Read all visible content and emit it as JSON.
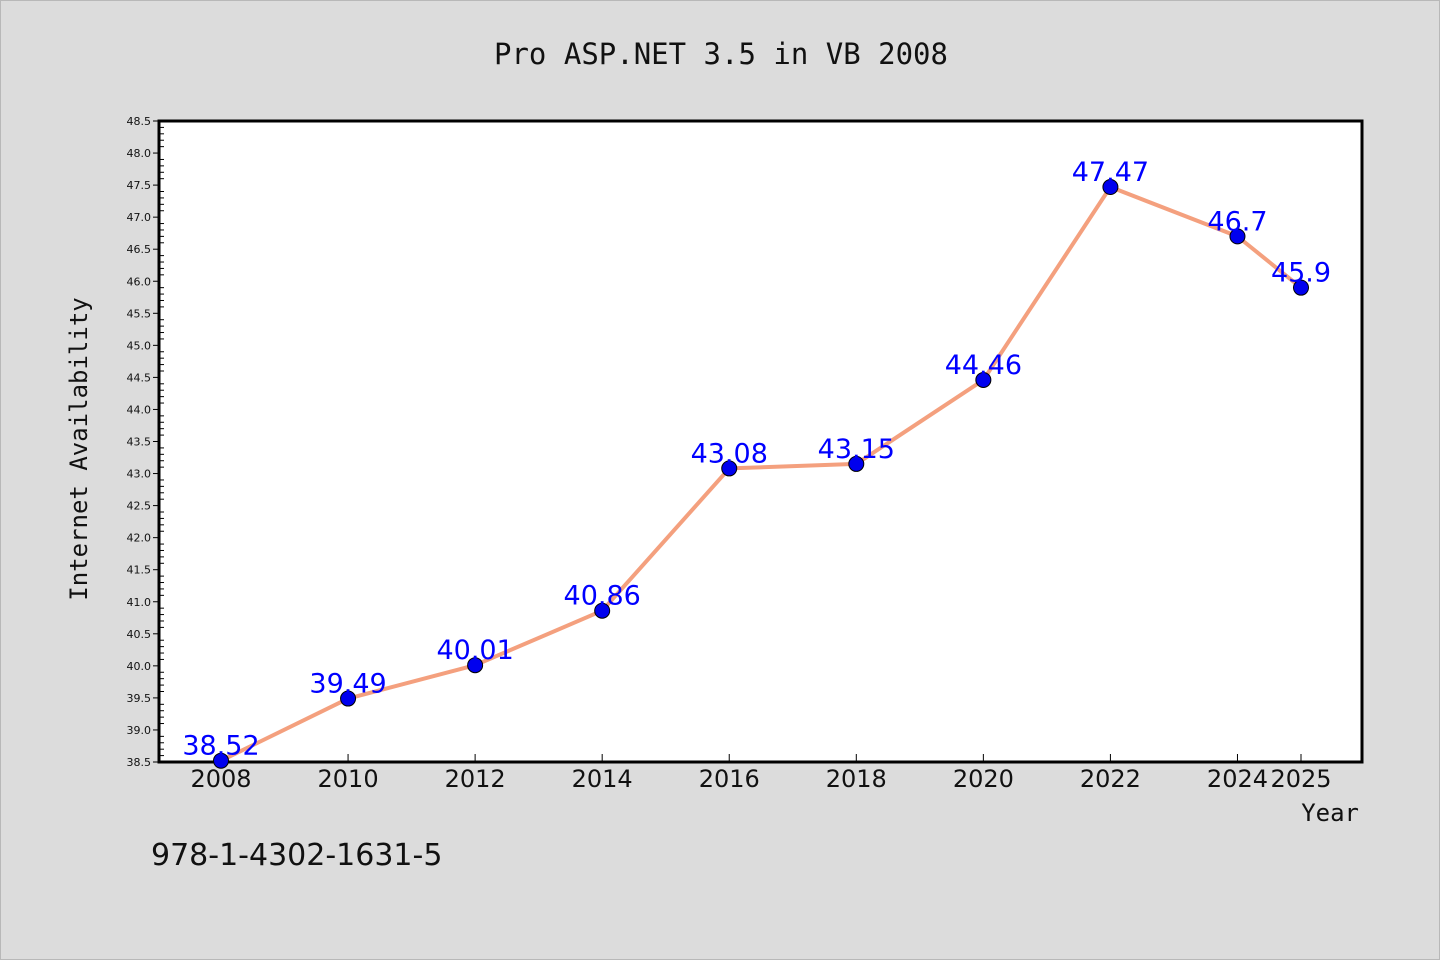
{
  "chart_data": {
    "type": "line",
    "title": "Pro ASP.NET 3.5 in VB 2008",
    "xlabel": "Year",
    "ylabel": "Internet Availability",
    "categories": [
      "2008",
      "2010",
      "2012",
      "2014",
      "2016",
      "2018",
      "2020",
      "2022",
      "2024",
      "2025"
    ],
    "series": [
      {
        "values": [
          38.52,
          39.49,
          40.01,
          40.86,
          43.08,
          43.15,
          44.46,
          47.47,
          46.7,
          45.9
        ],
        "labels": [
          "38.52",
          "39.49",
          "40.01",
          "40.86",
          "43.08",
          "43.15",
          "44.46",
          "47.47",
          "46.7",
          "45.9"
        ]
      }
    ],
    "ylim": [
      38.5,
      48.5
    ],
    "y_ticks": [
      "38.5",
      "39.0",
      "39.5",
      "40.0",
      "40.5",
      "41.0",
      "41.5",
      "42.0",
      "42.5",
      "43.0",
      "43.5",
      "44.0",
      "44.5",
      "45.0",
      "45.5",
      "46.0",
      "46.5",
      "47.0",
      "47.5",
      "48.0",
      "48.5"
    ],
    "grid": false,
    "legend": "none",
    "footnote": "978-1-4302-1631-5",
    "colors": {
      "line": "#f4a07e",
      "marker": "#0000ee",
      "label": "#0000ff",
      "background": "#dcdcdc",
      "plot_area": "#ffffff"
    }
  }
}
